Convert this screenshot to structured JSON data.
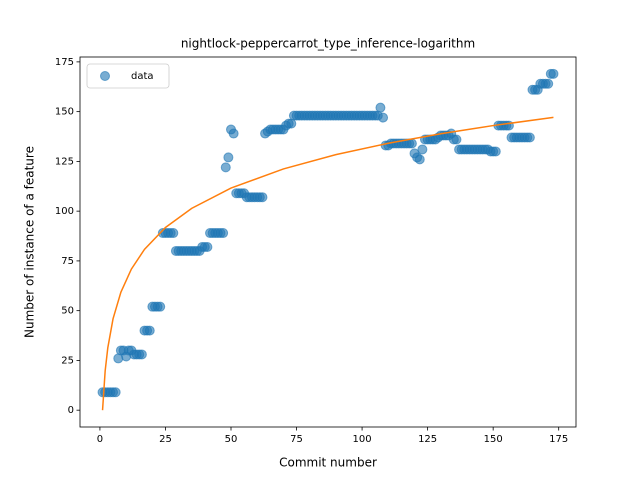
{
  "chart_data": {
    "type": "scatter",
    "title": "nightlock-peppercarrot_type_inference-logarithm",
    "x_label": "Commit number",
    "y_label": "Number of instance of a feature",
    "xlim": [
      -7.6,
      181.6
    ],
    "ylim": [
      -8.45,
      177.45
    ],
    "xticks": [
      0,
      25,
      50,
      75,
      100,
      125,
      150,
      175
    ],
    "yticks": [
      0,
      25,
      50,
      75,
      100,
      125,
      150,
      175
    ],
    "grid": false,
    "legend": "upper left",
    "series": [
      {
        "name": "data",
        "color": "#1f77b4",
        "mode": "markers",
        "x": [
          1,
          2,
          3,
          4,
          5,
          6,
          7,
          8,
          9,
          10,
          11,
          12,
          13,
          14,
          15,
          16,
          17,
          18,
          19,
          20,
          21,
          22,
          23,
          24,
          25,
          26,
          27,
          28,
          29,
          30,
          31,
          32,
          33,
          34,
          35,
          36,
          37,
          38,
          39,
          40,
          41,
          42,
          43,
          44,
          45,
          46,
          47,
          48,
          49,
          50,
          51,
          52,
          53,
          54,
          55,
          56,
          57,
          58,
          59,
          60,
          61,
          62,
          63,
          64,
          65,
          66,
          67,
          68,
          69,
          70,
          71,
          72,
          73,
          74,
          75,
          76,
          77,
          78,
          79,
          80,
          81,
          82,
          83,
          84,
          85,
          86,
          87,
          88,
          89,
          90,
          91,
          92,
          93,
          94,
          95,
          96,
          97,
          98,
          99,
          100,
          101,
          102,
          103,
          104,
          105,
          106,
          107,
          108,
          109,
          110,
          111,
          112,
          113,
          114,
          115,
          116,
          117,
          118,
          119,
          120,
          121,
          122,
          123,
          124,
          125,
          126,
          127,
          128,
          129,
          130,
          131,
          132,
          133,
          134,
          135,
          136,
          137,
          138,
          139,
          140,
          141,
          142,
          143,
          144,
          145,
          146,
          147,
          148,
          149,
          150,
          151,
          152,
          153,
          154,
          155,
          156,
          157,
          158,
          159,
          160,
          161,
          162,
          163,
          164,
          165,
          166,
          167,
          168,
          169,
          170,
          171,
          172,
          173
        ],
        "values": [
          9,
          9,
          9,
          9,
          9,
          9,
          26,
          30,
          30,
          27,
          30,
          30,
          28,
          28,
          28,
          28,
          40,
          40,
          40,
          52,
          52,
          52,
          52,
          89,
          89,
          89,
          89,
          89,
          80,
          80,
          80,
          80,
          80,
          80,
          80,
          80,
          80,
          80,
          82,
          82,
          82,
          89,
          89,
          89,
          89,
          89,
          89,
          122,
          127,
          141,
          139,
          109,
          109,
          109,
          109,
          107,
          107,
          107,
          107,
          107,
          107,
          107,
          139,
          140,
          141,
          141,
          141,
          141,
          141,
          141,
          143,
          144,
          144,
          148,
          148,
          148,
          148,
          148,
          148,
          148,
          148,
          148,
          148,
          148,
          148,
          148,
          148,
          148,
          148,
          148,
          148,
          148,
          148,
          148,
          148,
          148,
          148,
          148,
          148,
          148,
          148,
          148,
          148,
          148,
          148,
          148,
          152,
          147,
          133,
          133,
          134,
          134,
          134,
          134,
          134,
          134,
          134,
          134,
          134,
          129,
          127,
          126,
          131,
          136,
          136,
          136,
          136,
          136,
          137,
          138,
          138,
          138,
          138,
          139,
          136,
          136,
          131,
          131,
          131,
          131,
          131,
          131,
          131,
          131,
          131,
          131,
          131,
          131,
          130,
          130,
          130,
          143,
          143,
          143,
          143,
          143,
          137,
          137,
          137,
          137,
          137,
          137,
          137,
          137,
          161,
          161,
          161,
          164,
          164,
          164,
          164,
          169,
          169
        ]
      },
      {
        "color": "#ff7f0e",
        "mode": "line",
        "x": [
          1,
          2,
          3,
          5,
          8,
          12,
          17,
          25,
          35,
          50,
          70,
          90,
          110,
          130,
          150,
          173
        ],
        "values": [
          0,
          19.8,
          31.3,
          45.9,
          59.3,
          70.9,
          80.8,
          91.8,
          101.4,
          111.6,
          121.2,
          128.4,
          134.1,
          138.9,
          143.0,
          147.1
        ]
      }
    ]
  }
}
